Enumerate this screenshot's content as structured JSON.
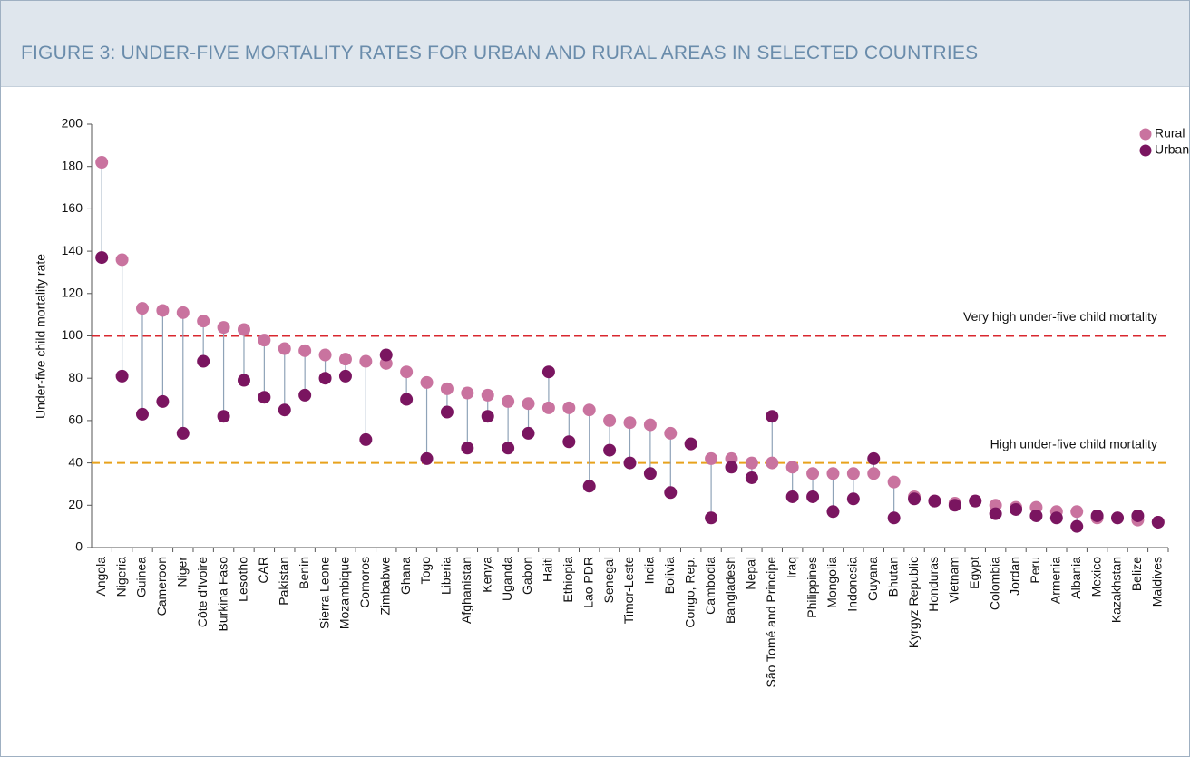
{
  "chart_data": {
    "type": "dumbbell",
    "title": "FIGURE 3: UNDER-FIVE MORTALITY RATES FOR URBAN AND RURAL AREAS IN SELECTED COUNTRIES",
    "y_label": "Under-five child mortality rate",
    "categories": [
      "Angola",
      "Nigeria",
      "Guinea",
      "Cameroon",
      "Niger",
      "Côte d'Ivoire",
      "Burkina Faso",
      "Lesotho",
      "CAR",
      "Pakistan",
      "Benin",
      "Sierra Leone",
      "Mozambique",
      "Comoros",
      "Zimbabwe",
      "Ghana",
      "Togo",
      "Liberia",
      "Afghanistan",
      "Kenya",
      "Uganda",
      "Gabon",
      "Haiti",
      "Ethiopia",
      "Lao PDR",
      "Senegal",
      "Timor-Leste",
      "India",
      "Bolivia",
      "Congo, Rep.",
      "Cambodia",
      "Bangladesh",
      "Nepal",
      "São Tomé and Principe",
      "Iraq",
      "Philippines",
      "Mongolia",
      "Indonesia",
      "Guyana",
      "Bhutan",
      "Kyrgyz Republic",
      "Honduras",
      "Vietnam",
      "Egypt",
      "Colombia",
      "Jordan",
      "Peru",
      "Armenia",
      "Albania",
      "Mexico",
      "Kazakhstan",
      "Belize",
      "Maldives"
    ],
    "series": [
      {
        "name": "Rural",
        "color": "#c9739f",
        "values": [
          182,
          136,
          113,
          112,
          111,
          107,
          104,
          103,
          98,
          94,
          93,
          91,
          89,
          88,
          87,
          83,
          78,
          75,
          73,
          72,
          69,
          68,
          66,
          66,
          65,
          60,
          59,
          58,
          54,
          49,
          42,
          42,
          40,
          40,
          38,
          35,
          35,
          35,
          35,
          31,
          24,
          22,
          21,
          22,
          20,
          19,
          19,
          17,
          17,
          14,
          14,
          13,
          12
        ]
      },
      {
        "name": "Urban",
        "color": "#7a1560",
        "values": [
          137,
          81,
          63,
          69,
          54,
          88,
          62,
          79,
          71,
          65,
          72,
          80,
          81,
          51,
          91,
          70,
          42,
          64,
          47,
          62,
          47,
          54,
          83,
          50,
          29,
          46,
          40,
          35,
          26,
          49,
          14,
          38,
          33,
          62,
          24,
          24,
          17,
          23,
          42,
          14,
          23,
          22,
          20,
          22,
          16,
          18,
          15,
          14,
          10,
          15,
          14,
          15,
          12
        ]
      }
    ],
    "reference_lines": [
      {
        "value": 100,
        "label": "Very high under-five child mortality",
        "color": "#d9282f"
      },
      {
        "value": 40,
        "label": "High under-five child mortality",
        "color": "#e8a21c"
      }
    ],
    "ylim": [
      0,
      200
    ],
    "yticks": [
      0,
      20,
      40,
      60,
      80,
      100,
      120,
      140,
      160,
      180,
      200
    ],
    "grid": false,
    "legend": "upper right"
  }
}
